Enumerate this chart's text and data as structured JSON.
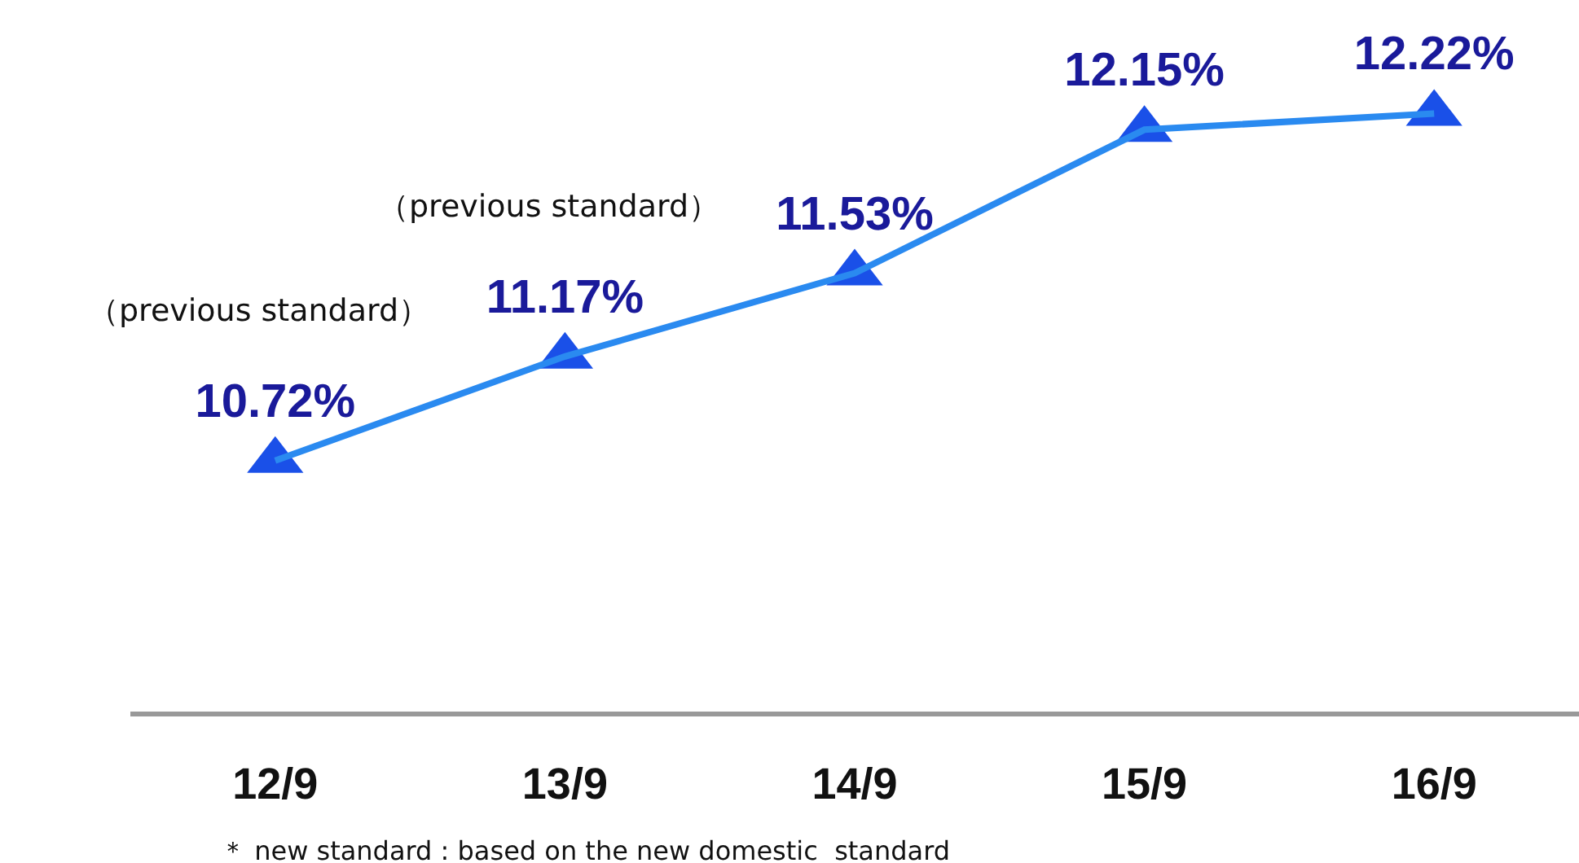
{
  "chart_data": {
    "type": "line",
    "categories": [
      "12/9",
      "13/9",
      "14/9",
      "15/9",
      "16/9"
    ],
    "series": [
      {
        "color": "#2a8af0",
        "values": [
          10.72,
          11.17,
          11.53,
          12.15,
          12.22
        ],
        "value_labels": [
          "10.72%",
          "11.17%",
          "11.53%",
          "12.15%",
          "12.22%"
        ]
      }
    ],
    "marker": "triangle",
    "annotations": [
      "（previous standard）",
      "（previous standard）",
      "＊ new standard : based on the new domestic  standard"
    ]
  }
}
